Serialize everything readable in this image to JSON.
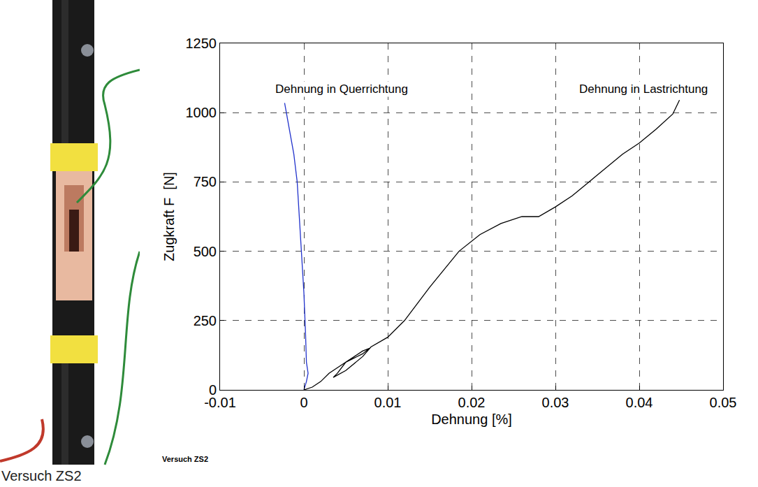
{
  "photo": {
    "caption": "Versuch ZS2"
  },
  "chart_data": {
    "type": "line",
    "x_label": "Dehnung [%]",
    "y_label": "Zugkraft F  [N]",
    "xlim": [
      -0.01,
      0.05
    ],
    "xticks": [
      -0.01,
      0,
      0.01,
      0.02,
      0.03,
      0.04,
      0.05
    ],
    "ylim": [
      0,
      1250
    ],
    "yticks": [
      0,
      250,
      500,
      750,
      1000,
      1250
    ],
    "grid": true,
    "series": [
      {
        "name": "Dehnung in Querrichtung",
        "color": "#2233cc",
        "x": [
          0,
          0.0003,
          0.0005,
          0.0003,
          0.0002,
          0,
          -0.0003,
          -0.0006,
          -0.0008,
          -0.0012,
          -0.0018,
          -0.0023
        ],
        "values": [
          0,
          30,
          60,
          100,
          200,
          350,
          500,
          650,
          750,
          850,
          950,
          1035
        ]
      },
      {
        "name": "Dehnung in Lastrichtung",
        "color": "#000000",
        "x": [
          0,
          0.001,
          0.002,
          0.003,
          0.004,
          0.005,
          0.006,
          0.007,
          0.0078,
          0.007,
          0.005,
          0.004,
          0.0035,
          0.005,
          0.007,
          0.008,
          0.01,
          0.012,
          0.015,
          0.0185,
          0.021,
          0.0235,
          0.026,
          0.028,
          0.03,
          0.032,
          0.034,
          0.036,
          0.038,
          0.04,
          0.042,
          0.044,
          0.0448
        ],
        "values": [
          0,
          10,
          30,
          60,
          80,
          100,
          115,
          130,
          150,
          140,
          100,
          60,
          45,
          70,
          120,
          155,
          190,
          250,
          370,
          500,
          560,
          600,
          625,
          625,
          660,
          700,
          750,
          800,
          850,
          890,
          940,
          995,
          1045
        ]
      }
    ],
    "annotations": [
      {
        "text": "Dehnung in Querrichtung",
        "x": 0.0045,
        "y": 1085
      },
      {
        "text": "Dehnung in Lastrichtung",
        "x": 0.0405,
        "y": 1085
      },
      {
        "text": "Versuch ZS2"
      }
    ]
  }
}
